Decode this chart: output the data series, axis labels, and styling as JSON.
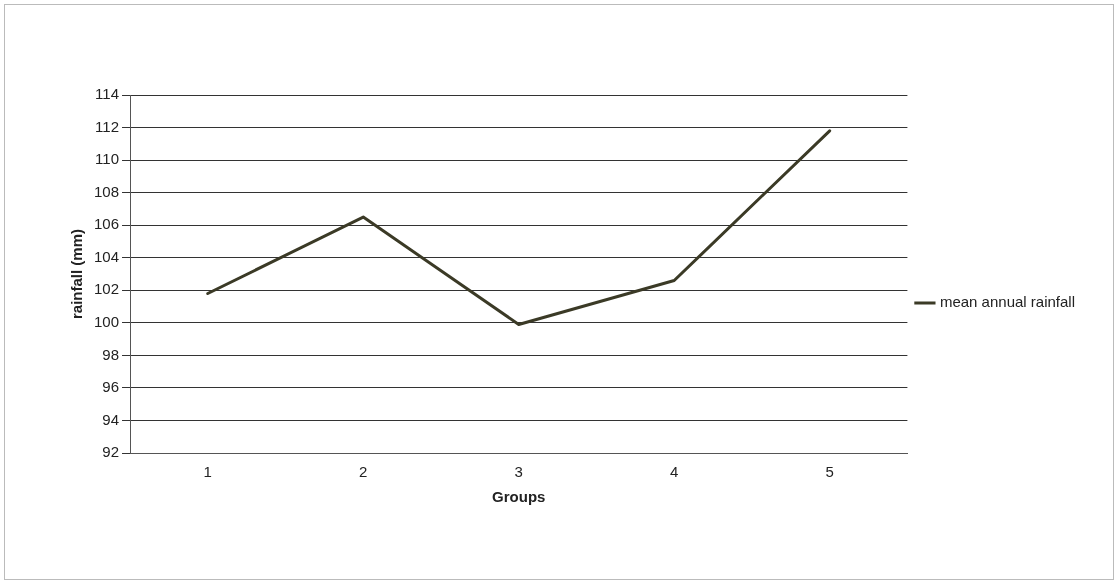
{
  "chart_data": {
    "type": "line",
    "xlabel": "Groups",
    "ylabel": "rainfall (mm)",
    "categories": [
      "1",
      "2",
      "3",
      "4",
      "5"
    ],
    "series": [
      {
        "name": "mean annual rainfall",
        "color": "#3b3a26",
        "values": [
          101.8,
          106.5,
          99.9,
          102.6,
          111.8
        ]
      }
    ],
    "ylim": [
      92,
      114
    ],
    "yticks": [
      92,
      94,
      96,
      98,
      100,
      102,
      104,
      106,
      108,
      110,
      112,
      114
    ],
    "grid": "y",
    "legend": "right",
    "marker": "none",
    "line_style": "solid"
  }
}
